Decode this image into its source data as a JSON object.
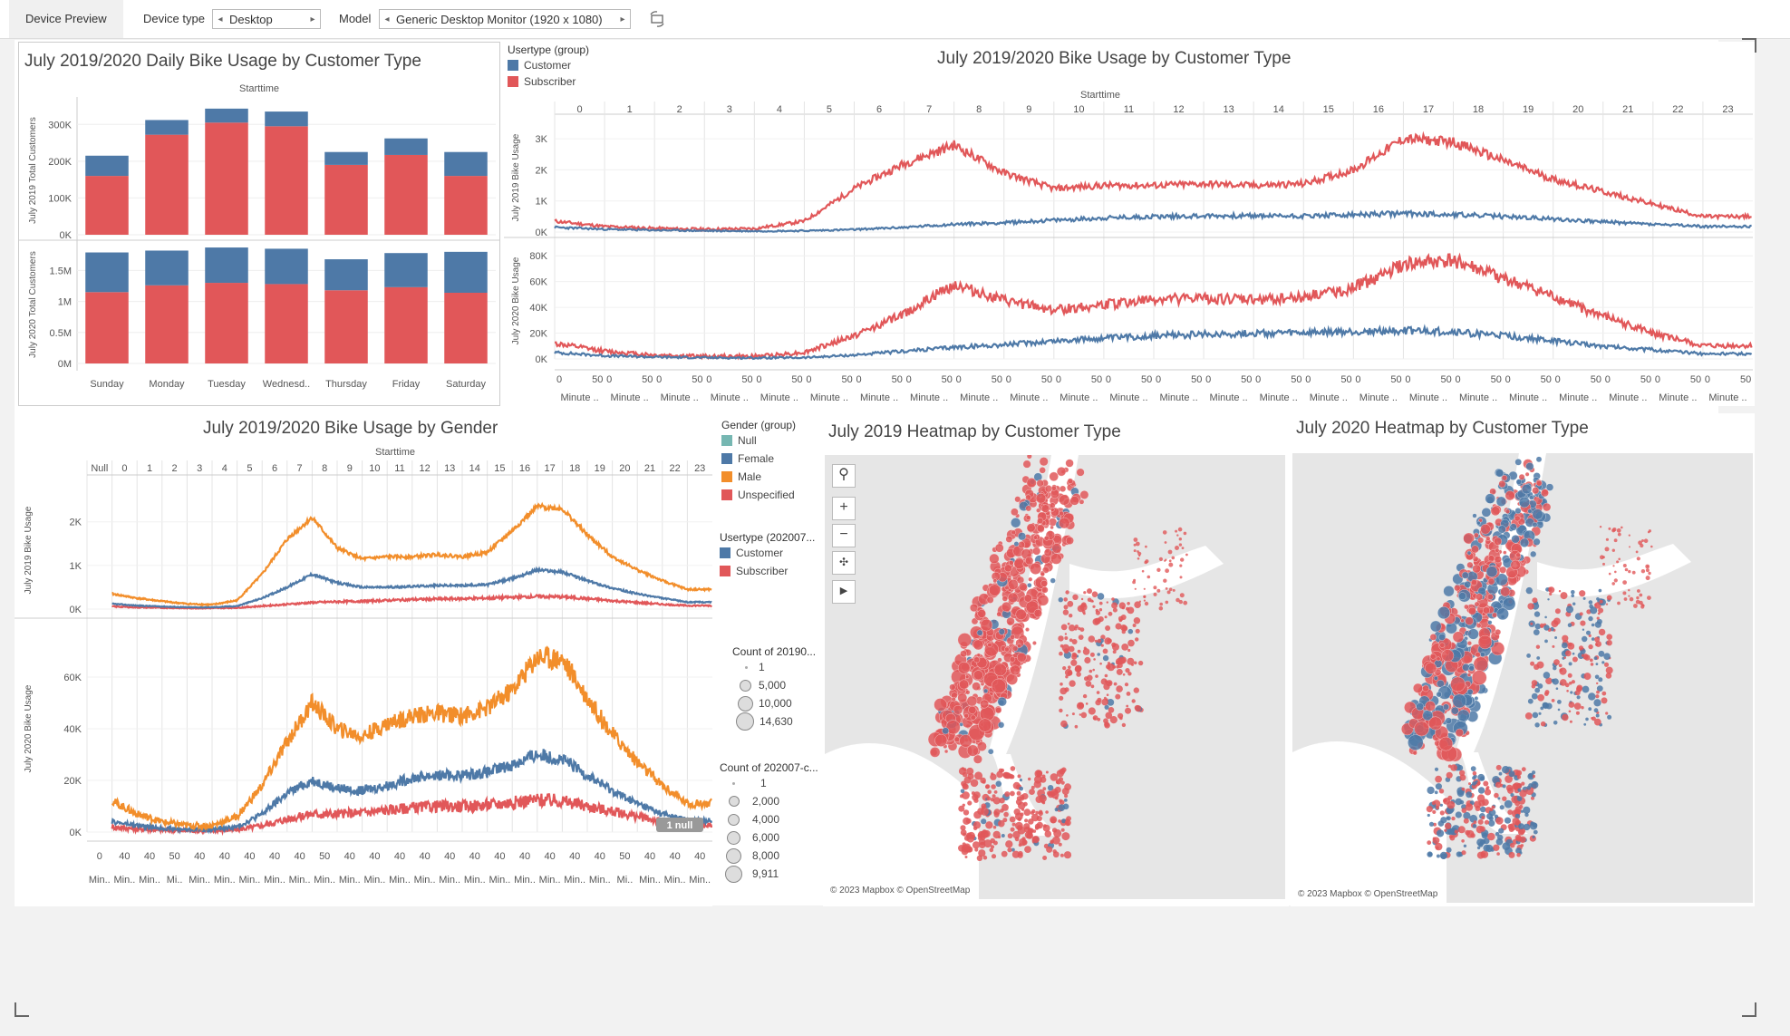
{
  "toolbar": {
    "tab": "Device Preview",
    "device_type_label": "Device type",
    "device_type_value": "Desktop",
    "model_label": "Model",
    "model_value": "Generic Desktop Monitor (1920 x 1080)"
  },
  "colors": {
    "customer": "#4e79a7",
    "subscriber": "#e15759",
    "male": "#f28e2b",
    "female": "#4e79a7",
    "unspecified": "#e15759",
    "null": "#76b7b2"
  },
  "daily": {
    "title": "July 2019/2020 Daily Bike Usage by Customer Type",
    "header": "Starttime",
    "ylabel_2019": "July 2019 Total Customers",
    "ylabel_2020": "July 2020 Total Customers",
    "yticks_2019": [
      "300K",
      "200K",
      "100K",
      "0K"
    ],
    "yticks_2020": [
      "1.5M",
      "1M",
      "0.5M",
      "0M"
    ],
    "days": [
      "Sunday",
      "Monday",
      "Tuesday",
      "Wednesd..",
      "Thursday",
      "Friday",
      "Saturday"
    ]
  },
  "hourly": {
    "title": "July 2019/2020 Bike Usage by Customer Type",
    "header": "Starttime",
    "legend_title": "Usertype (group)",
    "legend": [
      "Customer",
      "Subscriber"
    ],
    "ylabel_2019": "July 2019 Bike Usage",
    "ylabel_2020": "July 2020 Bike Usage",
    "yticks_2019": [
      "3K",
      "2K",
      "1K",
      "0K"
    ],
    "yticks_2020": [
      "80K",
      "60K",
      "40K",
      "20K",
      "0K"
    ],
    "hours": [
      "0",
      "1",
      "2",
      "3",
      "4",
      "5",
      "6",
      "7",
      "8",
      "9",
      "10",
      "11",
      "12",
      "13",
      "14",
      "15",
      "16",
      "17",
      "18",
      "19",
      "20",
      "21",
      "22",
      "23"
    ],
    "minute_ticks": [
      "0",
      "50"
    ],
    "minute_label": "Minute .."
  },
  "gender": {
    "title": "July 2019/2020 Bike Usage by Gender",
    "header": "Starttime",
    "ylabel_2019": "July 2019 Bike Usage",
    "ylabel_2020": "July 2020 Bike Usage",
    "yticks_2019": [
      "2K",
      "1K",
      "0K"
    ],
    "yticks_2020": [
      "60K",
      "40K",
      "20K",
      "0K"
    ],
    "hours": [
      "Null",
      "0",
      "1",
      "2",
      "3",
      "4",
      "5",
      "6",
      "7",
      "8",
      "9",
      "10",
      "11",
      "12",
      "13",
      "14",
      "15",
      "16",
      "17",
      "18",
      "19",
      "20",
      "21",
      "22",
      "23"
    ],
    "minute_ticks": [
      "0",
      "40",
      "40",
      "50",
      "40",
      "40",
      "40",
      "40",
      "40",
      "50",
      "40",
      "40",
      "40",
      "40",
      "40",
      "40",
      "40",
      "40",
      "40",
      "40",
      "40",
      "50",
      "40",
      "40",
      "40"
    ],
    "minute_labels": [
      "Min..",
      "Min..",
      "Min..",
      "Mi..",
      "Min..",
      "Min..",
      "Min..",
      "Min..",
      "Min..",
      "Min..",
      "Min..",
      "Min..",
      "Min..",
      "Min..",
      "Min..",
      "Min..",
      "Min..",
      "Min..",
      "Min..",
      "Min..",
      "Min..",
      "Mi..",
      "Min..",
      "Min..",
      "Min.."
    ],
    "null_badge": "1 null",
    "legend_gender_title": "Gender (group)",
    "legend_gender": [
      "Null",
      "Female",
      "Male",
      "Unspecified"
    ],
    "legend_user_title": "Usertype (202007...",
    "legend_user": [
      "Customer",
      "Subscriber"
    ],
    "size_title_2019": "Count of 20190...",
    "size_2019": [
      "1",
      "5,000",
      "10,000",
      "14,630"
    ],
    "size_title_2020": "Count of 202007-c...",
    "size_2020": [
      "1",
      "2,000",
      "4,000",
      "6,000",
      "8,000",
      "9,911"
    ]
  },
  "heat2019": {
    "title": "July 2019 Heatmap by Customer Type",
    "credit": "© 2023 Mapbox © OpenStreetMap"
  },
  "heat2020": {
    "title": "July 2020 Heatmap by Customer Type",
    "credit": "© 2023 Mapbox © OpenStreetMap"
  },
  "chart_data": [
    {
      "type": "bar",
      "title": "July 2019/2020 Daily Bike Usage by Customer Type",
      "panel": "July 2019 Total Customers",
      "categories": [
        "Sunday",
        "Monday",
        "Tuesday",
        "Wednesd..",
        "Thursday",
        "Friday",
        "Saturday"
      ],
      "stacked": true,
      "ylim": [
        0,
        350000
      ],
      "series": [
        {
          "name": "Subscriber",
          "values": [
            160000,
            272000,
            305000,
            295000,
            190000,
            217000,
            160000
          ]
        },
        {
          "name": "Customer",
          "values": [
            55000,
            40000,
            38000,
            40000,
            35000,
            45000,
            65000
          ]
        }
      ]
    },
    {
      "type": "bar",
      "title": "July 2019/2020 Daily Bike Usage by Customer Type",
      "panel": "July 2020 Total Customers",
      "categories": [
        "Sunday",
        "Monday",
        "Tuesday",
        "Wednesd..",
        "Thursday",
        "Friday",
        "Saturday"
      ],
      "stacked": true,
      "ylim": [
        0,
        1900000
      ],
      "series": [
        {
          "name": "Subscriber",
          "values": [
            1150000,
            1260000,
            1300000,
            1280000,
            1180000,
            1230000,
            1140000
          ]
        },
        {
          "name": "Customer",
          "values": [
            640000,
            560000,
            570000,
            570000,
            500000,
            550000,
            660000
          ]
        }
      ]
    },
    {
      "type": "line",
      "title": "July 2019/2020 Bike Usage by Customer Type",
      "panel": "July 2019 Bike Usage",
      "x": [
        "0",
        "1",
        "2",
        "3",
        "4",
        "5",
        "6",
        "7",
        "8",
        "9",
        "10",
        "11",
        "12",
        "13",
        "14",
        "15",
        "16",
        "17",
        "18",
        "19",
        "20",
        "21",
        "22",
        "23"
      ],
      "ylim": [
        0,
        3500
      ],
      "series": [
        {
          "name": "Subscriber",
          "values": [
            350,
            180,
            120,
            90,
            110,
            350,
            1400,
            2200,
            2800,
            1900,
            1400,
            1500,
            1500,
            1550,
            1500,
            1550,
            2000,
            3000,
            2900,
            2300,
            1700,
            1300,
            900,
            500
          ]
        },
        {
          "name": "Customer",
          "values": [
            150,
            90,
            60,
            40,
            30,
            40,
            80,
            150,
            250,
            300,
            380,
            450,
            500,
            520,
            520,
            520,
            550,
            600,
            560,
            500,
            420,
            330,
            250,
            180
          ]
        }
      ]
    },
    {
      "type": "line",
      "title": "July 2019/2020 Bike Usage by Customer Type",
      "panel": "July 2020 Bike Usage",
      "x": [
        "0",
        "1",
        "2",
        "3",
        "4",
        "5",
        "6",
        "7",
        "8",
        "9",
        "10",
        "11",
        "12",
        "13",
        "14",
        "15",
        "16",
        "17",
        "18",
        "19",
        "20",
        "21",
        "22",
        "23"
      ],
      "ylim": [
        0,
        90000
      ],
      "series": [
        {
          "name": "Subscriber",
          "values": [
            12000,
            6000,
            3000,
            2000,
            2000,
            5000,
            18000,
            35000,
            58000,
            45000,
            38000,
            42000,
            46000,
            47000,
            46000,
            48000,
            55000,
            73000,
            76000,
            62000,
            48000,
            33000,
            20000,
            10000
          ]
        },
        {
          "name": "Customer",
          "values": [
            5000,
            2500,
            1500,
            1000,
            800,
            1000,
            3000,
            6000,
            9000,
            11000,
            14000,
            16000,
            18000,
            19000,
            20000,
            20000,
            21000,
            22000,
            21000,
            18000,
            14000,
            10000,
            7000,
            4000
          ]
        }
      ]
    },
    {
      "type": "line",
      "title": "July 2019/2020 Bike Usage by Gender",
      "panel": "July 2019 Bike Usage",
      "x": [
        "0",
        "1",
        "2",
        "3",
        "4",
        "5",
        "6",
        "7",
        "8",
        "9",
        "10",
        "11",
        "12",
        "13",
        "14",
        "15",
        "16",
        "17",
        "18",
        "19",
        "20",
        "21",
        "22",
        "23"
      ],
      "ylim": [
        0,
        2700
      ],
      "series": [
        {
          "name": "Male",
          "values": [
            350,
            250,
            180,
            120,
            100,
            200,
            800,
            1600,
            2100,
            1400,
            1150,
            1200,
            1200,
            1250,
            1200,
            1300,
            1800,
            2350,
            2300,
            1700,
            1200,
            900,
            650,
            450
          ]
        },
        {
          "name": "Female",
          "values": [
            120,
            80,
            60,
            40,
            40,
            70,
            250,
            500,
            800,
            600,
            500,
            500,
            520,
            540,
            540,
            560,
            700,
            900,
            850,
            650,
            480,
            350,
            250,
            160
          ]
        },
        {
          "name": "Unspecified",
          "values": [
            60,
            40,
            30,
            20,
            20,
            30,
            70,
            110,
            150,
            170,
            180,
            200,
            220,
            230,
            240,
            250,
            270,
            290,
            280,
            240,
            190,
            150,
            110,
            80
          ]
        }
      ]
    },
    {
      "type": "line",
      "title": "July 2019/2020 Bike Usage by Gender",
      "panel": "July 2020 Bike Usage",
      "x": [
        "0",
        "1",
        "2",
        "3",
        "4",
        "5",
        "6",
        "7",
        "8",
        "9",
        "10",
        "11",
        "12",
        "13",
        "14",
        "15",
        "16",
        "17",
        "18",
        "19",
        "20",
        "21",
        "22",
        "23"
      ],
      "ylim": [
        0,
        80000
      ],
      "series": [
        {
          "name": "Male",
          "values": [
            12000,
            7000,
            4000,
            2500,
            2500,
            6000,
            18000,
            35000,
            50000,
            40000,
            37000,
            42000,
            45000,
            46000,
            45000,
            48000,
            55000,
            68000,
            67000,
            52000,
            38000,
            27000,
            18000,
            11000
          ]
        },
        {
          "name": "Female",
          "values": [
            4000,
            2500,
            1500,
            1000,
            1000,
            2000,
            7000,
            15000,
            20000,
            17000,
            16000,
            18000,
            21000,
            22000,
            22000,
            23000,
            26000,
            30000,
            28000,
            22000,
            16000,
            11000,
            7000,
            4500
          ]
        },
        {
          "name": "Unspecified",
          "values": [
            2000,
            1200,
            800,
            500,
            500,
            900,
            2500,
            5000,
            7000,
            7000,
            7500,
            8500,
            9500,
            10000,
            10000,
            10500,
            11500,
            12500,
            12000,
            10000,
            8000,
            6000,
            4000,
            2500
          ]
        }
      ]
    }
  ]
}
